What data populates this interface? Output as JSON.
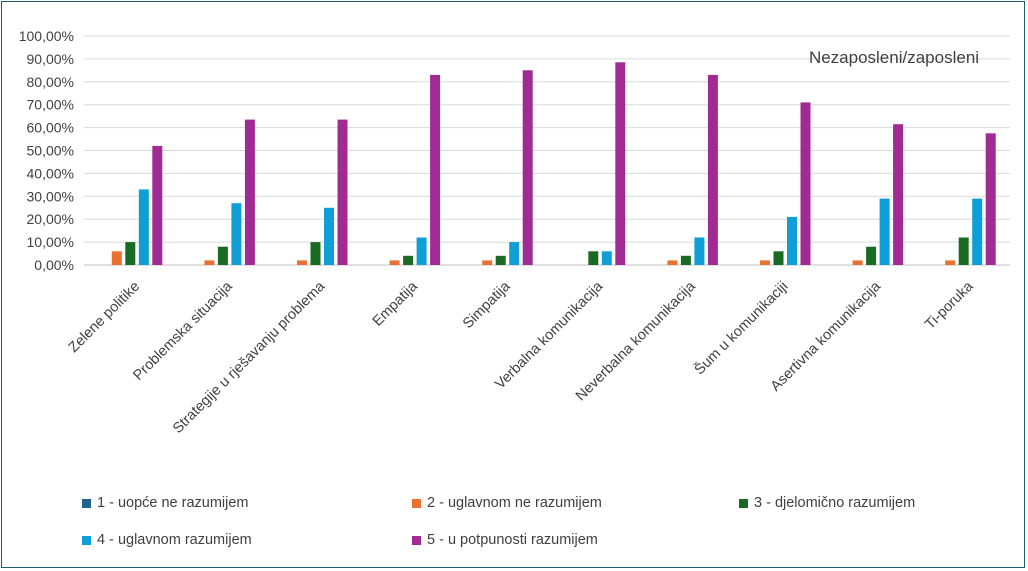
{
  "chart_data": {
    "type": "bar",
    "title": "Nezaposleni/zaposleni",
    "xlabel": "",
    "ylabel": "",
    "ylim": [
      0,
      1.0
    ],
    "y_ticks": [
      "0,00%",
      "10,00%",
      "20,00%",
      "30,00%",
      "40,00%",
      "50,00%",
      "60,00%",
      "70,00%",
      "80,00%",
      "90,00%",
      "100,00%"
    ],
    "grid": true,
    "legend_position": "bottom",
    "categories": [
      "Zelene politike",
      "Problemska situacija",
      "Strategije u rješavanju problema",
      "Empatija",
      "Simpatija",
      "Verbalna komunikacija",
      "Neverbalna komunikacija",
      "Šum u komunikaciji",
      "Asertivna komunikacija",
      "Ti-poruka"
    ],
    "series": [
      {
        "name": "1 - uopće ne razumijem",
        "color": "#1f6391",
        "values": [
          0,
          0,
          0,
          0,
          0,
          0,
          0,
          0,
          0,
          0
        ]
      },
      {
        "name": "2 - uglavnom ne razumijem",
        "color": "#e97132",
        "values": [
          0.06,
          0.02,
          0.02,
          0.02,
          0.02,
          0,
          0.02,
          0.02,
          0.02,
          0.02
        ]
      },
      {
        "name": "3 - djelomično razumijem",
        "color": "#196b24",
        "values": [
          0.1,
          0.08,
          0.1,
          0.04,
          0.04,
          0.06,
          0.04,
          0.06,
          0.08,
          0.12
        ]
      },
      {
        "name": "4 - uglavnom razumijem",
        "color": "#0f9ed5",
        "values": [
          0.33,
          0.27,
          0.25,
          0.12,
          0.1,
          0.06,
          0.12,
          0.21,
          0.29,
          0.29
        ]
      },
      {
        "name": "5 - u potpunosti razumijem",
        "color": "#a02b93",
        "values": [
          0.52,
          0.635,
          0.635,
          0.83,
          0.85,
          0.885,
          0.83,
          0.71,
          0.615,
          0.575
        ]
      }
    ]
  }
}
